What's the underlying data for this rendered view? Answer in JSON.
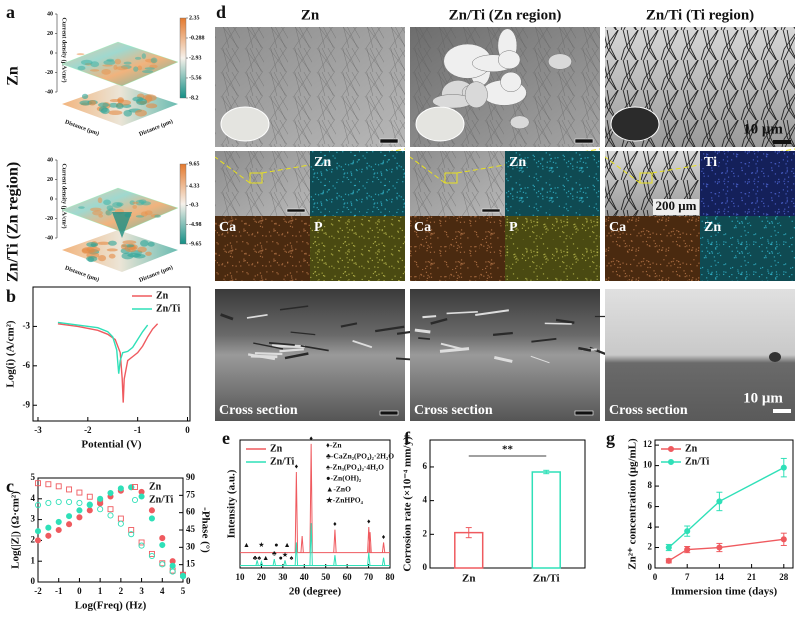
{
  "panel_a": {
    "label": "a",
    "plots": [
      {
        "row_label": "Zn",
        "zlabel": "Current density (μA/cm²)",
        "xlabel": "Distance (μm)",
        "ylabel": "Distance (μm)",
        "zticks": [
          40,
          20,
          0,
          -20,
          -40
        ],
        "colorbar_ticks": [
          2.35,
          -0.288,
          -2.93,
          -5.56,
          -8.2
        ]
      },
      {
        "row_label": "Zn/Ti (Zn region)",
        "zlabel": "Current density (μA/cm²)",
        "xlabel": "Distance (μm)",
        "ylabel": "Distance (μm)",
        "zticks": [
          40,
          20,
          0,
          -20,
          -40
        ],
        "colorbar_ticks": [
          9.65,
          4.33,
          -0.3,
          -4.98,
          -9.65
        ]
      }
    ]
  },
  "panel_d": {
    "label": "d",
    "columns": [
      {
        "title": "Zn",
        "eds": [
          {
            "element": "Zn",
            "color": "#0f4a52"
          },
          {
            "element": "Ca",
            "color": "#4a2a10"
          },
          {
            "element": "P",
            "color": "#4a4a12"
          }
        ]
      },
      {
        "title": "Zn/Ti (Zn region)",
        "eds": [
          {
            "element": "Zn",
            "color": "#0f4a52"
          },
          {
            "element": "Ca",
            "color": "#4a2a10"
          },
          {
            "element": "P",
            "color": "#4a4a12"
          }
        ]
      },
      {
        "title": "Zn/Ti (Ti region)",
        "eds": [
          {
            "element": "Ti",
            "color": "#14205a"
          },
          {
            "element": "Ca",
            "color": "#4a2a10"
          },
          {
            "element": "Zn",
            "color": "#0f4a52"
          }
        ]
      }
    ],
    "scale_bars": {
      "top": "10 μm",
      "eds": "200 μm",
      "cross": "10 μm"
    },
    "cross_label": "Cross section"
  },
  "chart_data": [
    {
      "type": "line",
      "panel": "b",
      "xlabel": "Potential (V)",
      "ylabel": "Log(i) (A/cm²)",
      "xlim": [
        -3.1,
        0.05
      ],
      "xticks": [
        -3,
        -2,
        -1,
        0
      ],
      "ylim": [
        -10.2,
        0
      ],
      "yticks": [
        -3,
        -6,
        -9
      ],
      "legend": "upper right",
      "series": [
        {
          "name": "Zn",
          "color": "#ef5a5f",
          "x": [
            -2.6,
            -2.2,
            -1.8,
            -1.6,
            -1.45,
            -1.35,
            -1.31,
            -1.29,
            -1.27,
            -1.2,
            -1.1,
            -1.0,
            -0.9,
            -0.8,
            -0.7,
            -0.6
          ],
          "values": [
            -2.8,
            -3.0,
            -3.3,
            -3.6,
            -4.0,
            -5.0,
            -7.0,
            -8.8,
            -7.0,
            -5.6,
            -5.3,
            -5.0,
            -4.5,
            -3.8,
            -3.2,
            -2.8
          ]
        },
        {
          "name": "Zn/Ti",
          "color": "#2fe0b8",
          "x": [
            -2.6,
            -2.2,
            -1.8,
            -1.6,
            -1.5,
            -1.42,
            -1.38,
            -1.35,
            -1.3,
            -1.2,
            -1.1,
            -1.0,
            -0.9,
            -0.8
          ],
          "values": [
            -2.7,
            -2.9,
            -3.1,
            -3.4,
            -3.8,
            -4.8,
            -6.6,
            -5.6,
            -5.0,
            -4.9,
            -4.6,
            -4.0,
            -3.4,
            -2.9
          ]
        }
      ]
    },
    {
      "type": "scatter",
      "panel": "c",
      "xlabel": "Log(Freq) (Hz)",
      "ylabel": "Log(|Z|) (Ω·cm²)",
      "y2label": "-Phase (°)",
      "xlim": [
        -2,
        5
      ],
      "xticks": [
        -2,
        -1,
        0,
        1,
        2,
        3,
        4,
        5
      ],
      "ylim": [
        0,
        5
      ],
      "yticks": [
        0,
        1,
        2,
        3,
        4,
        5
      ],
      "y2lim": [
        0,
        90
      ],
      "y2ticks": [
        0,
        15,
        30,
        45,
        60,
        75,
        90
      ],
      "legend": "upper right",
      "x": [
        -2,
        -1.5,
        -1,
        -0.5,
        0,
        0.5,
        1,
        1.5,
        2,
        2.5,
        3,
        3.5,
        4,
        4.5,
        5
      ],
      "series": [
        {
          "name": "Zn",
          "color": "#ef5a5f",
          "marker": "square",
          "values": [
            4.75,
            4.7,
            4.6,
            4.45,
            4.3,
            4.1,
            3.85,
            3.5,
            3.05,
            2.5,
            1.9,
            1.35,
            0.9,
            0.55,
            0.35
          ],
          "phase": [
            36,
            40,
            45,
            50,
            56,
            62,
            68,
            74,
            79,
            82,
            78,
            62,
            38,
            18,
            6
          ]
        },
        {
          "name": "Zn/Ti",
          "color": "#2fe0b8",
          "marker": "circle",
          "values": [
            3.7,
            3.8,
            3.85,
            3.85,
            3.8,
            3.7,
            3.5,
            3.2,
            2.8,
            2.3,
            1.75,
            1.25,
            0.85,
            0.5,
            0.3
          ],
          "phase": [
            44,
            47,
            52,
            57,
            62,
            67,
            72,
            77,
            81,
            82,
            74,
            55,
            32,
            14,
            5
          ]
        }
      ]
    },
    {
      "type": "xrd",
      "panel": "e",
      "xlabel": "2θ (degree)",
      "ylabel": "Intensity (a.u.)",
      "xlim": [
        10,
        80
      ],
      "xticks": [
        10,
        20,
        30,
        40,
        50,
        60,
        70,
        80
      ],
      "ylim": [
        0,
        100
      ],
      "legend": "upper left",
      "phases": [
        "♦-Zn",
        "♣-CaZn₂(PO₄)₂·2H₂O",
        "♠-Zn₃(PO₄)₂·4H₂O",
        "●-Zn(OH)₂",
        "▲-ZnO",
        "★-ZnHPO₄"
      ],
      "series": [
        {
          "name": "Zn",
          "color": "#ef5a5f",
          "baseline": 12,
          "peaks_x": [
            36.3,
            39.0,
            43.2,
            54.3,
            70.1,
            70.7,
            77.0
          ],
          "peaks_h": [
            75,
            25,
            97,
            30,
            32,
            28,
            20
          ],
          "markers": [
            {
              "x": 36.3,
              "symbol": "♦"
            },
            {
              "x": 43.2,
              "symbol": "♦"
            },
            {
              "x": 54.3,
              "symbol": "♦"
            },
            {
              "x": 70.1,
              "symbol": "♦"
            },
            {
              "x": 77.0,
              "symbol": "♦"
            },
            {
              "x": 13,
              "symbol": "▲"
            },
            {
              "x": 20,
              "symbol": "★"
            },
            {
              "x": 27,
              "symbol": "●"
            },
            {
              "x": 32,
              "symbol": "▲"
            }
          ]
        },
        {
          "name": "Zn/Ti",
          "color": "#2fe0b8",
          "baseline": 2,
          "peaks_x": [
            18,
            20,
            26,
            31,
            36.3,
            43.2,
            54.3,
            70.1,
            77.0
          ],
          "peaks_h": [
            6,
            5,
            7,
            6,
            20,
            35,
            10,
            12,
            8
          ],
          "markers": [
            {
              "x": 17,
              "symbol": "♣"
            },
            {
              "x": 19,
              "symbol": "♠"
            },
            {
              "x": 22,
              "symbol": "▲"
            },
            {
              "x": 26,
              "symbol": "♣"
            },
            {
              "x": 29,
              "symbol": "●"
            },
            {
              "x": 31,
              "symbol": "★"
            },
            {
              "x": 34,
              "symbol": "♠"
            }
          ]
        }
      ]
    },
    {
      "type": "bar",
      "panel": "f",
      "ylabel": "Corrosion rate (×10⁻⁴ mm/y)",
      "ylim": [
        0,
        7.6
      ],
      "yticks": [
        0,
        2,
        4,
        6
      ],
      "categories": [
        "Zn",
        "Zn/Ti"
      ],
      "values": [
        2.1,
        5.7
      ],
      "errors": [
        0.3,
        0.1
      ],
      "colors": [
        "#ef5a5f",
        "#2fe0b8"
      ],
      "annotation": "**"
    },
    {
      "type": "line",
      "panel": "g",
      "xlabel": "Immersion time (days)",
      "ylabel": "Zn²⁺ concentration (μg/mL)",
      "xlim": [
        0,
        30
      ],
      "xticks": [
        0,
        7,
        14,
        21,
        28
      ],
      "ylim": [
        0,
        12.5
      ],
      "yticks": [
        0,
        2,
        4,
        6,
        8,
        10,
        12
      ],
      "legend": "upper left",
      "x": [
        3,
        7,
        14,
        28
      ],
      "series": [
        {
          "name": "Zn",
          "color": "#ef5a5f",
          "values": [
            0.7,
            1.8,
            2.0,
            2.8
          ],
          "errors": [
            0.2,
            0.3,
            0.4,
            0.6
          ]
        },
        {
          "name": "Zn/Ti",
          "color": "#2fe0b8",
          "values": [
            2.0,
            3.6,
            6.5,
            9.8
          ],
          "errors": [
            0.3,
            0.5,
            0.9,
            0.9
          ]
        }
      ]
    }
  ]
}
